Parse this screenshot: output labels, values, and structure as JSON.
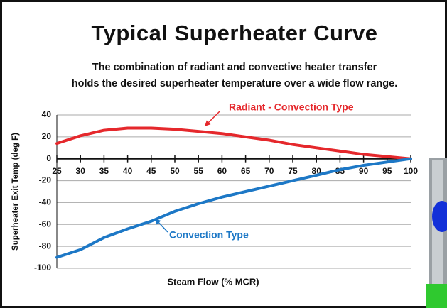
{
  "chart_data": {
    "type": "line",
    "title": "Typical Superheater Curve",
    "subtitle": [
      "The combination of radiant and convective heater transfer",
      "holds the desired superheater temperature over a wide flow range."
    ],
    "x_label": "Steam Flow (% MCR)",
    "y_label": "Superheater Exit Temp (deg F)",
    "x": [
      25,
      30,
      35,
      40,
      45,
      50,
      55,
      60,
      65,
      70,
      75,
      80,
      85,
      90,
      95,
      100
    ],
    "series": [
      {
        "name": "Radiant - Convection Type",
        "color": "#e5282c",
        "values": [
          14,
          21,
          26,
          28,
          28,
          27,
          25,
          23,
          20,
          17,
          13,
          10,
          7,
          4,
          2,
          0
        ]
      },
      {
        "name": "Convection Type",
        "color": "#1d78c6",
        "values": [
          -90,
          -83,
          -72,
          -64,
          -57,
          -48,
          -41,
          -35,
          -30,
          -25,
          -20,
          -15,
          -10,
          -6,
          -3,
          0
        ]
      }
    ],
    "xlim": [
      25,
      100
    ],
    "xticks": [
      25,
      30,
      35,
      40,
      45,
      50,
      55,
      60,
      65,
      70,
      75,
      80,
      85,
      90,
      95,
      100
    ],
    "ylim": [
      -100,
      40
    ],
    "yticks": [
      40,
      20,
      0,
      -20,
      -40,
      -60,
      -80,
      -100
    ],
    "grid": true
  }
}
